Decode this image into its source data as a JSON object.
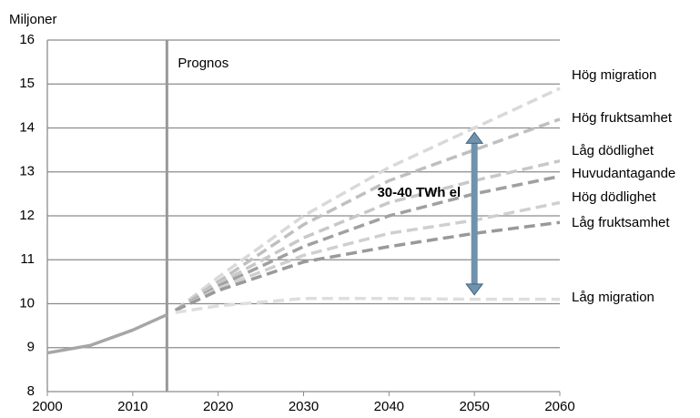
{
  "chart_data": {
    "type": "line",
    "y_label": "Miljoner",
    "xlim": [
      2000,
      2060
    ],
    "xticks": [
      2000,
      2010,
      2020,
      2030,
      2040,
      2050,
      2060
    ],
    "ylim": [
      8,
      16
    ],
    "yticks": [
      8,
      9,
      10,
      11,
      12,
      13,
      14,
      15,
      16
    ],
    "grid": true,
    "series": [
      {
        "color": "#a6a6a6",
        "dashed": false,
        "x": [
          2000,
          2005,
          2010,
          2014
        ],
        "values": [
          8.88,
          9.05,
          9.4,
          9.75
        ]
      },
      {
        "name": "Hög migration",
        "color": "#d9d9d9",
        "dashed": true,
        "x": [
          2015,
          2020,
          2030,
          2040,
          2050,
          2060
        ],
        "values": [
          9.85,
          10.6,
          12.0,
          13.1,
          14.0,
          14.9
        ]
      },
      {
        "name": "Hög fruktsamhet",
        "color": "#bfbfbf",
        "dashed": true,
        "x": [
          2015,
          2020,
          2030,
          2040,
          2050,
          2060
        ],
        "values": [
          9.85,
          10.5,
          11.8,
          12.8,
          13.5,
          14.2
        ]
      },
      {
        "name": "Låg dödlighet",
        "color": "#c8c8c8",
        "dashed": true,
        "x": [
          2015,
          2020,
          2030,
          2040,
          2050,
          2060
        ],
        "values": [
          9.85,
          10.45,
          11.5,
          12.3,
          12.8,
          13.25
        ]
      },
      {
        "name": "Huvudantagande",
        "color": "#a0a0a0",
        "dashed": true,
        "x": [
          2015,
          2020,
          2030,
          2040,
          2050,
          2060
        ],
        "values": [
          9.85,
          10.4,
          11.3,
          12.0,
          12.5,
          12.9
        ]
      },
      {
        "name": "Hög dödlighet",
        "color": "#cfcfcf",
        "dashed": true,
        "x": [
          2015,
          2020,
          2030,
          2040,
          2050,
          2060
        ],
        "values": [
          9.85,
          10.35,
          11.1,
          11.6,
          11.9,
          12.3
        ]
      },
      {
        "name": "Låg fruktsamhet",
        "color": "#999999",
        "dashed": true,
        "x": [
          2015,
          2020,
          2030,
          2040,
          2050,
          2060
        ],
        "values": [
          9.85,
          10.3,
          10.95,
          11.3,
          11.6,
          11.85
        ]
      },
      {
        "name": "Låg migration",
        "color": "#dedede",
        "dashed": true,
        "x": [
          2015,
          2020,
          2030,
          2040,
          2050,
          2060
        ],
        "values": [
          9.8,
          9.95,
          10.12,
          10.12,
          10.1,
          10.1
        ]
      }
    ],
    "forecast": {
      "label": "Prognos",
      "x": 2014
    },
    "arrow": {
      "label": "30-40 TWh el",
      "x": 2050,
      "from": 10.2,
      "to": 13.9,
      "color": "#6f93ad"
    }
  }
}
